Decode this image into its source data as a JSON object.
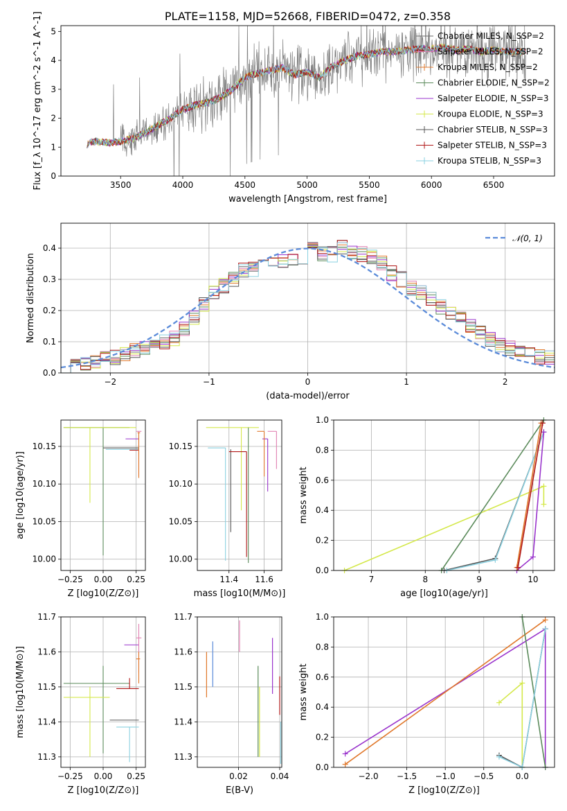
{
  "chart_data": [
    {
      "type": "line",
      "title": "PLATE=1158, MJD=52668, FIBERID=0472, z=0.358",
      "xlabel": "wavelength [Angstrom, rest frame]",
      "ylabel": "Flux [f_λ 10^-17 erg cm^-2 s^-1 A^-1]",
      "xlim": [
        3020,
        6990
      ],
      "ylim": [
        0,
        5.2
      ],
      "xticks": [
        3500,
        4000,
        4500,
        5000,
        5500,
        6000,
        6500
      ],
      "yticks": [
        0,
        1,
        2,
        3,
        4,
        5
      ],
      "legend_position": "upper-right",
      "series": [
        {
          "name": "Chabrier MILES, N_SSP=2",
          "color": "#6a6a6a"
        },
        {
          "name": "Salpeter MILES, N_SSP=2",
          "color": "#e07fb0"
        },
        {
          "name": "Kroupa MILES, N_SSP=2",
          "color": "#e0772a"
        },
        {
          "name": "Chabrier ELODIE, N_SSP=2",
          "color": "#5a8a5a"
        },
        {
          "name": "Salpeter ELODIE, N_SSP=3",
          "color": "#9933cc"
        },
        {
          "name": "Kroupa ELODIE, N_SSP=3",
          "color": "#d4e84a"
        },
        {
          "name": "Chabrier STELIB, N_SSP=3",
          "color": "#555555"
        },
        {
          "name": "Salpeter STELIB, N_SSP=3",
          "color": "#b01515"
        },
        {
          "name": "Kroupa STELIB, N_SSP=3",
          "color": "#8ad0e0"
        }
      ],
      "model_trend": {
        "x": [
          3200,
          3250,
          3300,
          3400,
          3500,
          3600,
          3700,
          3800,
          3900,
          4000,
          4100,
          4200,
          4300,
          4400,
          4500,
          4600,
          4700,
          4800,
          4900,
          5000,
          5100,
          5200,
          5300,
          5400,
          5500,
          5600,
          5700,
          5800,
          5900,
          6000,
          6100,
          6200,
          6300,
          6400,
          6500,
          6600,
          6700
        ],
        "y": [
          1.0,
          1.15,
          1.2,
          1.15,
          1.2,
          1.3,
          1.5,
          1.75,
          2.0,
          2.3,
          2.45,
          2.55,
          2.7,
          3.0,
          3.4,
          3.55,
          3.65,
          3.75,
          3.5,
          3.6,
          3.4,
          3.8,
          4.0,
          4.15,
          4.2,
          4.3,
          4.3,
          4.35,
          4.4,
          4.4,
          4.45,
          4.35,
          4.4,
          4.3,
          4.35,
          4.3,
          4.3
        ]
      }
    },
    {
      "type": "line",
      "xlabel": "(data-model)/error",
      "ylabel": "Normed distribution",
      "xlim": [
        -2.5,
        2.5
      ],
      "ylim": [
        0,
        0.48
      ],
      "xticks": [
        -2,
        -1,
        0,
        1,
        2
      ],
      "yticks": [
        0.0,
        0.1,
        0.2,
        0.3,
        0.4
      ],
      "legend_position": "upper-right",
      "reference_curve": {
        "name": "𝒩(0, 1)",
        "color": "#5b8bd9",
        "style": "dashed"
      },
      "bin_width": 0.1,
      "histogram_centers": [
        -2.45,
        -2.35,
        -2.25,
        -2.15,
        -2.05,
        -1.95,
        -1.85,
        -1.75,
        -1.65,
        -1.55,
        -1.45,
        -1.35,
        -1.25,
        -1.15,
        -1.05,
        -0.95,
        -0.85,
        -0.75,
        -0.65,
        -0.55,
        -0.45,
        -0.35,
        -0.25,
        -0.15,
        -0.05,
        0.05,
        0.15,
        0.25,
        0.35,
        0.45,
        0.55,
        0.65,
        0.75,
        0.85,
        0.95,
        1.05,
        1.15,
        1.25,
        1.35,
        1.45,
        1.55,
        1.65,
        1.75,
        1.85,
        1.95,
        2.05,
        2.15,
        2.25,
        2.35,
        2.45
      ],
      "histogram_values": [
        0.02,
        0.03,
        0.03,
        0.04,
        0.05,
        0.05,
        0.06,
        0.07,
        0.08,
        0.09,
        0.1,
        0.11,
        0.14,
        0.18,
        0.22,
        0.26,
        0.28,
        0.3,
        0.33,
        0.33,
        0.35,
        0.35,
        0.36,
        0.36,
        0.37,
        0.42,
        0.38,
        0.38,
        0.4,
        0.39,
        0.38,
        0.37,
        0.35,
        0.32,
        0.3,
        0.27,
        0.26,
        0.24,
        0.21,
        0.19,
        0.17,
        0.15,
        0.13,
        0.11,
        0.09,
        0.08,
        0.07,
        0.06,
        0.05,
        0.05
      ]
    },
    {
      "type": "scatter",
      "xlabel": "Z [log10(Z/Z⊙)]",
      "ylabel": "age [log10(age/yr)]",
      "xlim": [
        -0.32,
        0.32
      ],
      "ylim": [
        9.985,
        10.185
      ],
      "xticks": [
        -0.25,
        0.0,
        0.25
      ],
      "yticks": [
        10.0,
        10.05,
        10.1,
        10.15
      ],
      "crosses": [
        {
          "color": "#5a8a5a",
          "x": 0.0,
          "y": 10.175,
          "xerr": [
            0.3,
            0.2
          ],
          "yerr": [
            0.17,
            0.0
          ]
        },
        {
          "color": "#d4e84a",
          "x": -0.1,
          "y": 10.175,
          "xerr": [
            0.2,
            0.35
          ],
          "yerr": [
            0.1,
            0.0
          ]
        },
        {
          "color": "#555555",
          "x": 0.12,
          "y": 10.148,
          "xerr": [
            0.12,
            0.15
          ],
          "yerr": [
            0.0,
            0.0
          ]
        },
        {
          "color": "#8ad0e0",
          "x": 0.14,
          "y": 10.146,
          "xerr": [
            0.12,
            0.13
          ],
          "yerr": [
            0.0,
            0.0
          ]
        },
        {
          "color": "#b01515",
          "x": 0.2,
          "y": 10.145,
          "xerr": [
            0.0,
            0.07
          ],
          "yerr": [
            0.0,
            0.0
          ]
        },
        {
          "color": "#9933cc",
          "x": 0.22,
          "y": 10.16,
          "xerr": [
            0.05,
            0.05
          ],
          "yerr": [
            0.0,
            0.0
          ]
        },
        {
          "color": "#e07fb0",
          "x": 0.27,
          "y": 10.17,
          "xerr": [
            0.02,
            0.02
          ],
          "yerr": [
            0.06,
            0.0
          ]
        },
        {
          "color": "#e0772a",
          "x": 0.27,
          "y": 10.168,
          "xerr": [
            0.01,
            0.01
          ],
          "yerr": [
            0.06,
            0.0
          ]
        }
      ]
    },
    {
      "type": "scatter",
      "xlabel": "mass [log10(M/M⊙)]",
      "ylabel": "",
      "xlim": [
        11.22,
        11.7
      ],
      "ylim": [
        9.985,
        10.185
      ],
      "xticks": [
        11.4,
        11.6
      ],
      "yticks": [
        10.0,
        10.05,
        10.1,
        10.15
      ],
      "crosses": [
        {
          "color": "#d4e84a",
          "x": 11.47,
          "y": 10.175,
          "xerr": [
            0.2,
            0.1
          ],
          "yerr": [
            0.11,
            0.0
          ]
        },
        {
          "color": "#8ad0e0",
          "x": 11.38,
          "y": 10.148,
          "xerr": [
            0.1,
            0.0
          ],
          "yerr": [
            0.15,
            0.0
          ]
        },
        {
          "color": "#555555",
          "x": 11.41,
          "y": 10.146,
          "xerr": [
            0.0,
            0.0
          ],
          "yerr": [
            0.11,
            0.0
          ]
        },
        {
          "color": "#b01515",
          "x": 11.5,
          "y": 10.143,
          "xerr": [
            0.1,
            0.0
          ],
          "yerr": [
            0.14,
            0.0
          ]
        },
        {
          "color": "#5a8a5a",
          "x": 11.51,
          "y": 10.175,
          "xerr": [
            0.0,
            0.0
          ],
          "yerr": [
            0.18,
            0.0
          ]
        },
        {
          "color": "#9933cc",
          "x": 11.62,
          "y": 10.16,
          "xerr": [
            0.03,
            0.0
          ],
          "yerr": [
            0.07,
            0.0
          ]
        },
        {
          "color": "#e07fb0",
          "x": 11.67,
          "y": 10.17,
          "xerr": [
            0.05,
            0.0
          ],
          "yerr": [
            0.05,
            0.0
          ]
        },
        {
          "color": "#e0772a",
          "x": 11.6,
          "y": 10.17,
          "xerr": [
            0.04,
            0.0
          ],
          "yerr": [
            0.06,
            0.0
          ]
        }
      ]
    },
    {
      "type": "line",
      "xlabel": "age [log10(age/yr)]",
      "ylabel": "mass weight",
      "xlim": [
        6.3,
        10.4
      ],
      "ylim": [
        0,
        1
      ],
      "xticks": [
        7,
        8,
        9,
        10
      ],
      "yticks": [
        0.0,
        0.2,
        0.4,
        0.6,
        0.8,
        1.0
      ],
      "series": [
        {
          "color": "#d4e84a",
          "x": [
            6.5,
            10.2,
            10.2
          ],
          "y": [
            0.0,
            0.56,
            0.44
          ]
        },
        {
          "color": "#5a8a5a",
          "x": [
            8.3,
            10.2
          ],
          "y": [
            0.0,
            1.0
          ]
        },
        {
          "color": "#555555",
          "x": [
            8.35,
            9.3,
            10.2
          ],
          "y": [
            0.0,
            0.08,
            0.92
          ]
        },
        {
          "color": "#8ad0e0",
          "x": [
            8.4,
            9.3,
            10.2
          ],
          "y": [
            0.0,
            0.07,
            0.92
          ]
        },
        {
          "color": "#9933cc",
          "x": [
            9.7,
            10.0,
            10.2
          ],
          "y": [
            0.0,
            0.09,
            0.92
          ]
        },
        {
          "color": "#e0772a",
          "x": [
            9.7,
            10.15
          ],
          "y": [
            0.02,
            0.98
          ]
        },
        {
          "color": "#b01515",
          "x": [
            9.72,
            10.18
          ],
          "y": [
            0.02,
            0.98
          ]
        }
      ]
    },
    {
      "type": "scatter",
      "xlabel": "Z [log10(Z/Z⊙)]",
      "ylabel": "mass [log10(M/M⊙)]",
      "xlim": [
        -0.32,
        0.32
      ],
      "ylim": [
        11.27,
        11.7
      ],
      "xticks": [
        -0.25,
        0.0,
        0.25
      ],
      "yticks": [
        11.3,
        11.4,
        11.5,
        11.6,
        11.7
      ],
      "crosses": [
        {
          "color": "#5a8a5a",
          "x": 0.0,
          "y": 11.51,
          "xerr": [
            0.3,
            0.2
          ],
          "yerr": [
            0.2,
            0.05
          ]
        },
        {
          "color": "#d4e84a",
          "x": -0.1,
          "y": 11.47,
          "xerr": [
            0.2,
            0.15
          ],
          "yerr": [
            0.17,
            0.03
          ]
        },
        {
          "color": "#b01515",
          "x": 0.2,
          "y": 11.495,
          "xerr": [
            0.1,
            0.07
          ],
          "yerr": [
            0.0,
            0.03
          ]
        },
        {
          "color": "#555555",
          "x": 0.17,
          "y": 11.405,
          "xerr": [
            0.12,
            0.1
          ],
          "yerr": [
            0.0,
            0.0
          ]
        },
        {
          "color": "#8ad0e0",
          "x": 0.2,
          "y": 11.385,
          "xerr": [
            0.1,
            0.07
          ],
          "yerr": [
            0.1,
            0.0
          ]
        },
        {
          "color": "#9933cc",
          "x": 0.22,
          "y": 11.62,
          "xerr": [
            0.06,
            0.05
          ],
          "yerr": [
            0.0,
            0.0
          ]
        },
        {
          "color": "#e07fb0",
          "x": 0.27,
          "y": 11.64,
          "xerr": [
            0.02,
            0.02
          ],
          "yerr": [
            0.1,
            0.04
          ]
        },
        {
          "color": "#e0772a",
          "x": 0.27,
          "y": 11.58,
          "xerr": [
            0.02,
            0.01
          ],
          "yerr": [
            0.07,
            0.02
          ]
        }
      ]
    },
    {
      "type": "scatter",
      "xlabel": "E(B-V)",
      "ylabel": "",
      "xlim": [
        0.0,
        0.041
      ],
      "ylim": [
        11.27,
        11.7
      ],
      "xticks": [
        0.02,
        0.04
      ],
      "yticks": [
        11.3,
        11.4,
        11.5,
        11.6,
        11.7
      ],
      "bars": [
        {
          "color": "#e0772a",
          "x": 0.0045,
          "y1": 11.47,
          "y2": 11.6
        },
        {
          "color": "#5b8bd9",
          "x": 0.0075,
          "y1": 11.5,
          "y2": 11.63
        },
        {
          "color": "#e07fb0",
          "x": 0.0205,
          "y1": 11.6,
          "y2": 11.69
        },
        {
          "color": "#5a8a5a",
          "x": 0.0295,
          "y1": 11.3,
          "y2": 11.56
        },
        {
          "color": "#d4e84a",
          "x": 0.0302,
          "y1": 11.3,
          "y2": 11.5
        },
        {
          "color": "#9933cc",
          "x": 0.0365,
          "y1": 11.48,
          "y2": 11.64
        },
        {
          "color": "#b01515",
          "x": 0.04,
          "y1": 11.42,
          "y2": 11.53
        },
        {
          "color": "#8ad0e0",
          "x": 0.0405,
          "y1": 11.28,
          "y2": 11.4
        }
      ]
    },
    {
      "type": "line",
      "xlabel": "Z [log10(Z/Z⊙)]",
      "ylabel": "mass weight",
      "xlim": [
        -2.45,
        0.42
      ],
      "ylim": [
        0,
        1
      ],
      "xticks": [
        -2.0,
        -1.5,
        -1.0,
        -0.5,
        0.0
      ],
      "yticks": [
        0.0,
        0.2,
        0.4,
        0.6,
        0.8,
        1.0
      ],
      "series": [
        {
          "color": "#9933cc",
          "x": [
            -2.3,
            0.3,
            0.3,
            0.3
          ],
          "y": [
            0.09,
            0.92,
            0.0,
            0.92
          ]
        },
        {
          "color": "#e0772a",
          "x": [
            -2.3,
            0.3
          ],
          "y": [
            0.02,
            0.98
          ]
        },
        {
          "color": "#5a8a5a",
          "x": [
            0.0,
            0.3
          ],
          "y": [
            1.0,
            0.0
          ]
        },
        {
          "color": "#d4e84a",
          "x": [
            -0.3,
            0.0,
            0.0
          ],
          "y": [
            0.43,
            0.56,
            0.0
          ]
        },
        {
          "color": "#555555",
          "x": [
            -0.3,
            0.0,
            0.3
          ],
          "y": [
            0.08,
            0.0,
            0.92
          ]
        },
        {
          "color": "#8ad0e0",
          "x": [
            -0.3,
            0.0,
            0.3
          ],
          "y": [
            0.07,
            0.0,
            0.92
          ]
        }
      ]
    }
  ]
}
